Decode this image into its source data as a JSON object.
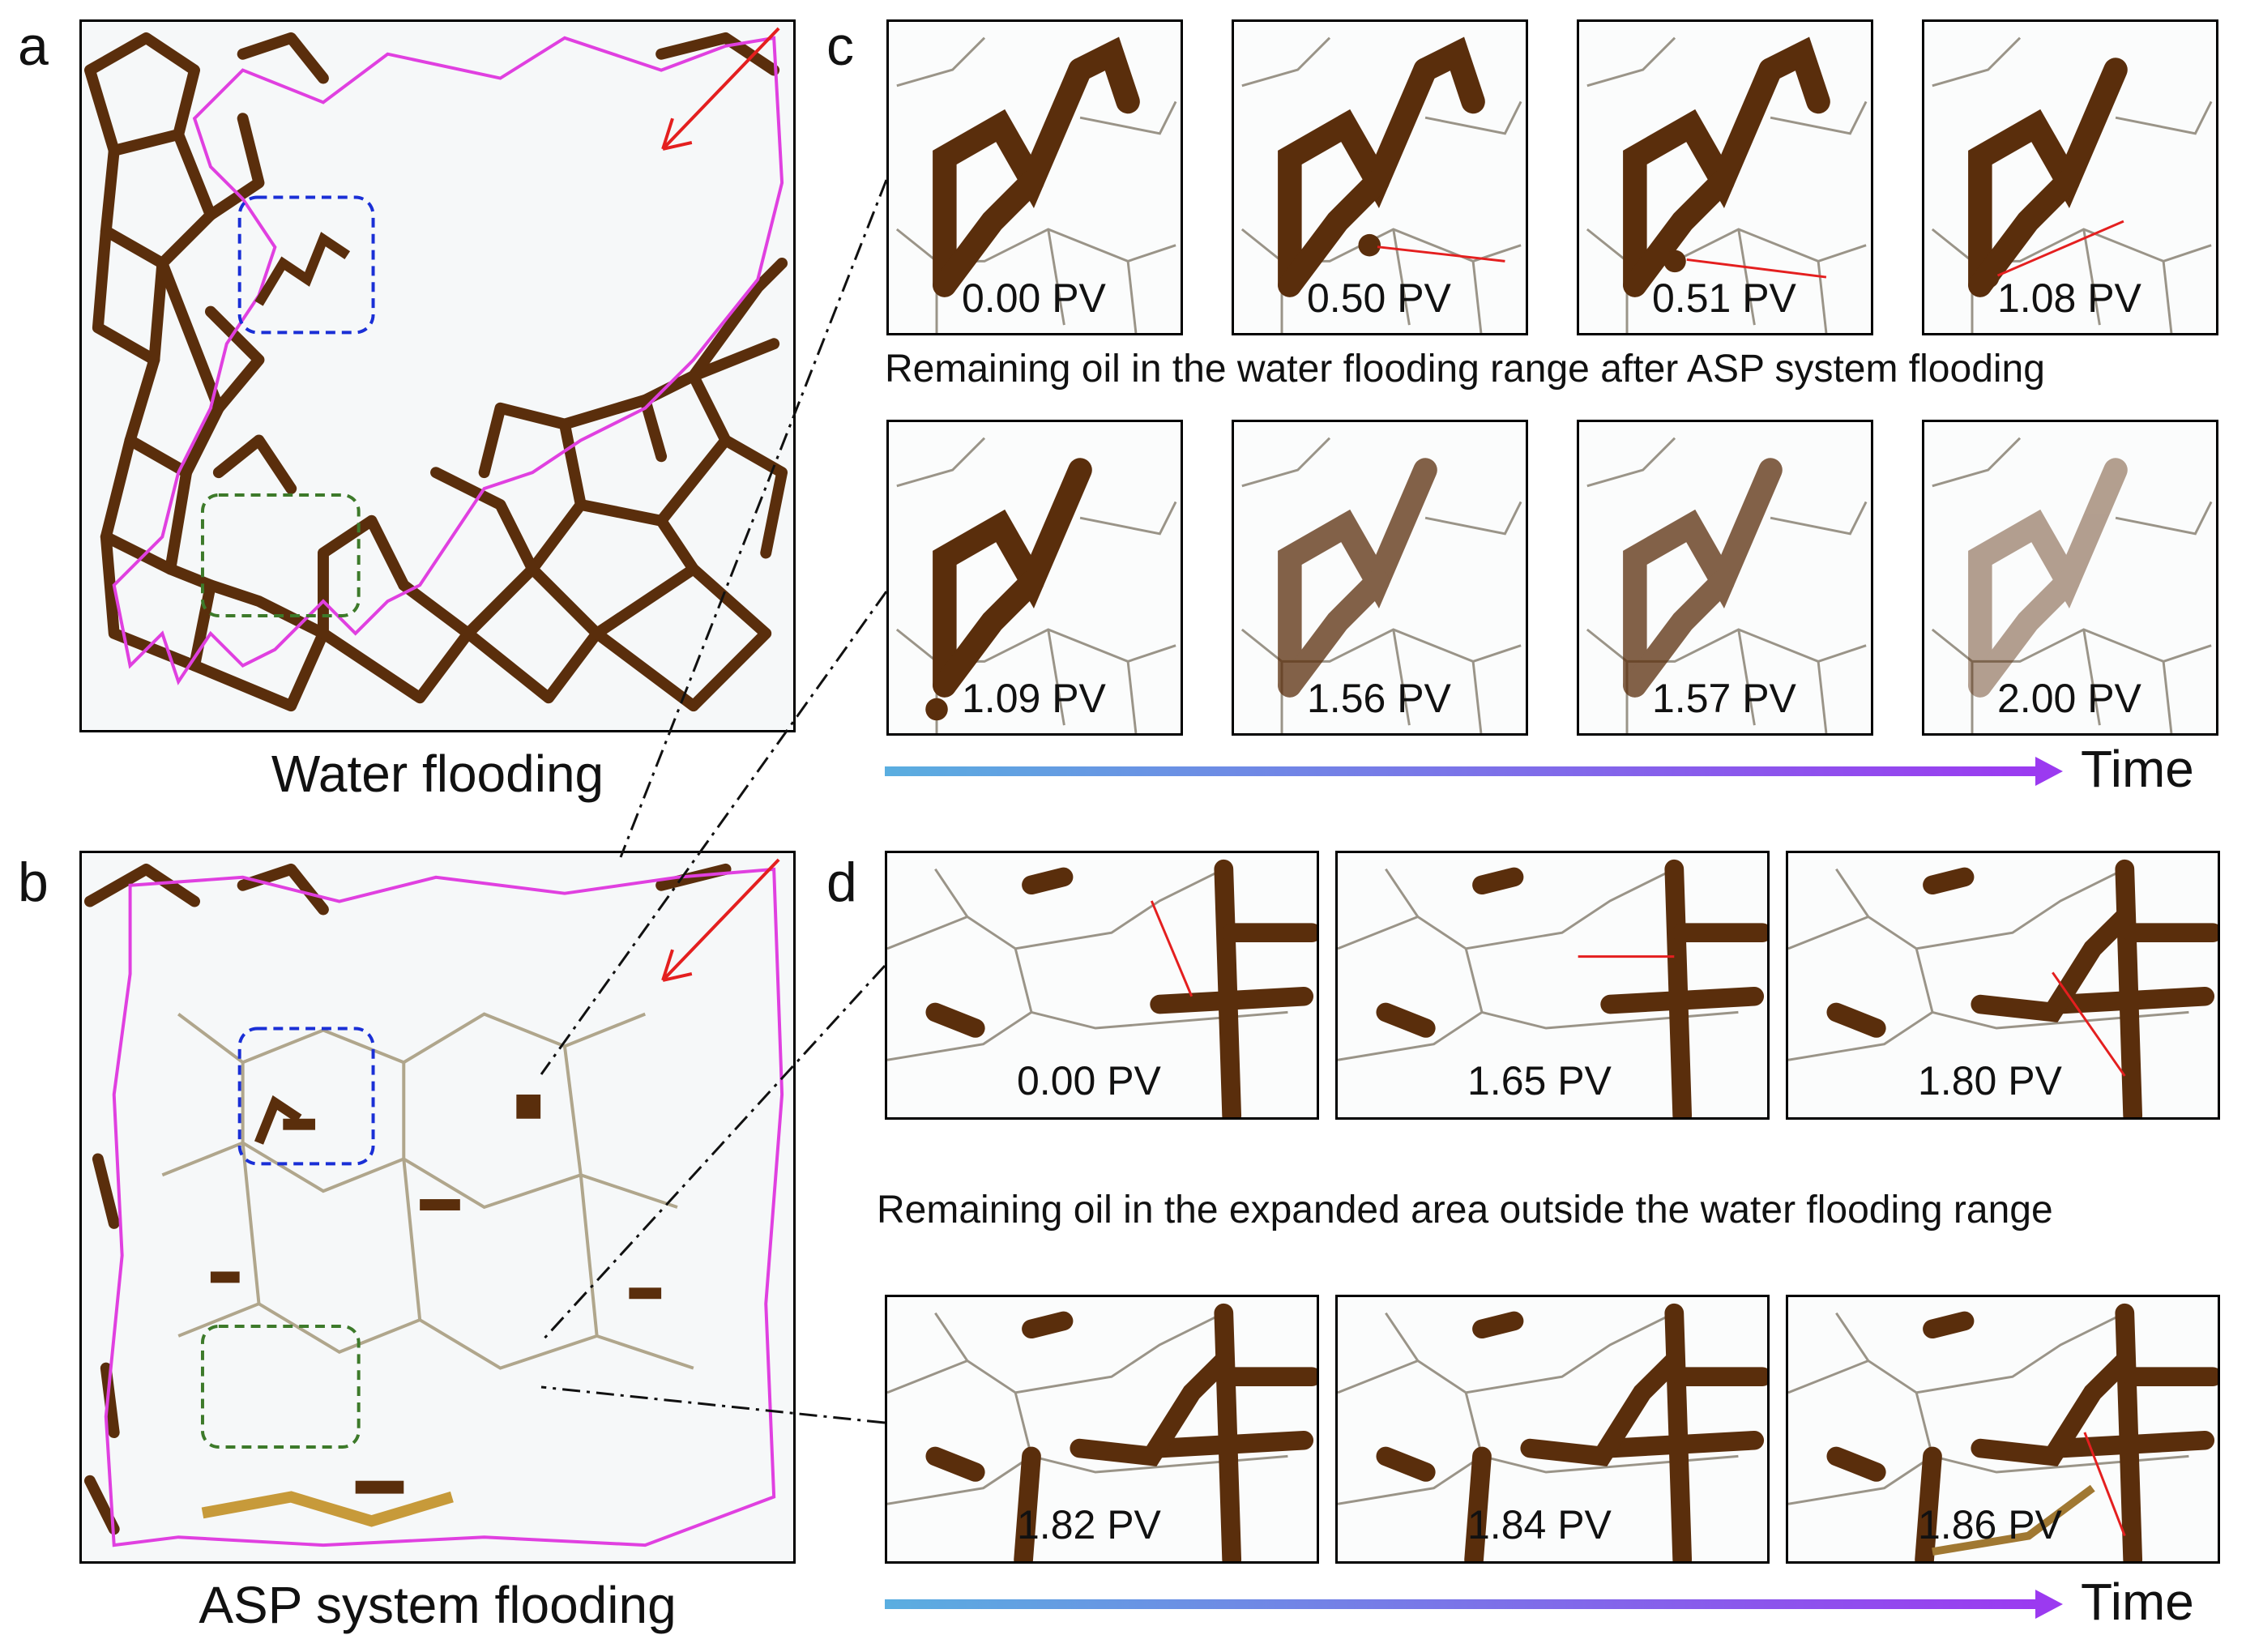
{
  "labels": {
    "a": "a",
    "b": "b",
    "c": "c",
    "d": "d"
  },
  "captions": {
    "a": "Water flooding",
    "b": "ASP system flooding",
    "c_mid": "Remaining oil in the water flooding range after ASP system flooding",
    "d_mid": "Remaining oil in the expanded area outside the water flooding range",
    "time": "Time"
  },
  "c_frames": [
    "0.00 PV",
    "0.50 PV",
    "0.51 PV",
    "1.08 PV",
    "1.09 PV",
    "1.56 PV",
    "1.57 PV",
    "2.00 PV"
  ],
  "d_frames": [
    "0.00 PV",
    "1.65 PV",
    "1.80 PV",
    "1.82 PV",
    "1.84 PV",
    "1.86 PV"
  ],
  "colors": {
    "oil": "#5a2e0c",
    "boundary": "#e040e0",
    "blue_box": "#1a2fd6",
    "green_box": "#3d7a2a",
    "arrow": "#e41f1f",
    "time_start": "#5aaee0",
    "time_end": "#9b3af0"
  }
}
